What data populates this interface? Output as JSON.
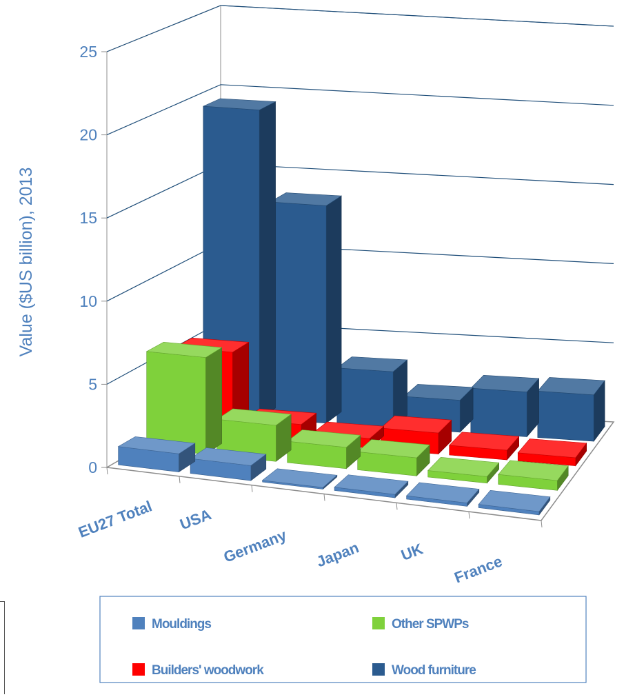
{
  "chart_data": {
    "type": "bar",
    "subtype": "3d-clustered-column",
    "title": "",
    "ylabel": "Value ($US billion),  2013",
    "xlabel": "",
    "ylim": [
      0,
      25
    ],
    "yticks": [
      0,
      5,
      10,
      15,
      20,
      25
    ],
    "grid": true,
    "legend_position": "bottom",
    "categories": [
      "EU27 Total",
      "USA",
      "Germany",
      "Japan",
      "UK",
      "France"
    ],
    "series": [
      {
        "name": "Mouldings",
        "color": "#4F81BD",
        "values": [
          1.1,
          0.9,
          0.1,
          0.2,
          0.2,
          0.2
        ]
      },
      {
        "name": "Other SPWPs",
        "color": "#7FD13B",
        "values": [
          5.9,
          2.2,
          1.3,
          1.1,
          0.4,
          0.6
        ]
      },
      {
        "name": "Builders' woodwork",
        "color": "#FF0000",
        "values": [
          5.2,
          1.1,
          0.6,
          1.3,
          0.6,
          0.5
        ]
      },
      {
        "name": "Wood furniture",
        "color": "#2B5B8F",
        "values": [
          19.3,
          13.6,
          3.5,
          2.0,
          2.8,
          2.9
        ]
      }
    ],
    "colors": {
      "axis_text": "#4F81BD",
      "gridline": "#1F4E79",
      "floor_edge": "#8C8C8C"
    }
  }
}
